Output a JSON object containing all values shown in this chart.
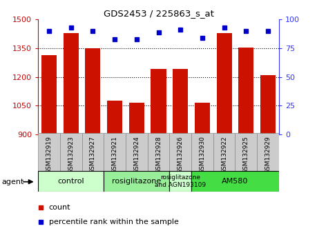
{
  "title": "GDS2453 / 225863_s_at",
  "samples": [
    "GSM132919",
    "GSM132923",
    "GSM132927",
    "GSM132921",
    "GSM132924",
    "GSM132928",
    "GSM132926",
    "GSM132930",
    "GSM132922",
    "GSM132925",
    "GSM132929"
  ],
  "counts": [
    1315,
    1430,
    1350,
    1075,
    1065,
    1240,
    1240,
    1065,
    1430,
    1355,
    1210
  ],
  "percentiles": [
    90,
    93,
    90,
    83,
    83,
    89,
    91,
    84,
    93,
    90,
    90
  ],
  "ylim_left": [
    900,
    1500
  ],
  "ylim_right": [
    0,
    100
  ],
  "yticks_left": [
    900,
    1050,
    1200,
    1350,
    1500
  ],
  "yticks_right": [
    0,
    25,
    50,
    75,
    100
  ],
  "grid_lines": [
    1050,
    1200,
    1350
  ],
  "groups": [
    {
      "label": "control",
      "start": 0,
      "end": 3,
      "color": "#ccffcc"
    },
    {
      "label": "rosiglitazone",
      "start": 3,
      "end": 6,
      "color": "#99ee99"
    },
    {
      "label": "rosiglitazone\nand AGN193109",
      "start": 6,
      "end": 7,
      "color": "#ccffcc"
    },
    {
      "label": "AM580",
      "start": 7,
      "end": 11,
      "color": "#44dd44"
    }
  ],
  "bar_color": "#cc1100",
  "dot_color": "#0000cc",
  "bg_color": "#ffffff",
  "xtick_bg_color": "#cccccc",
  "left_axis_color": "#cc0000",
  "right_axis_color": "#3333ff",
  "plot_bg_color": "#ffffff",
  "border_color": "#000000"
}
